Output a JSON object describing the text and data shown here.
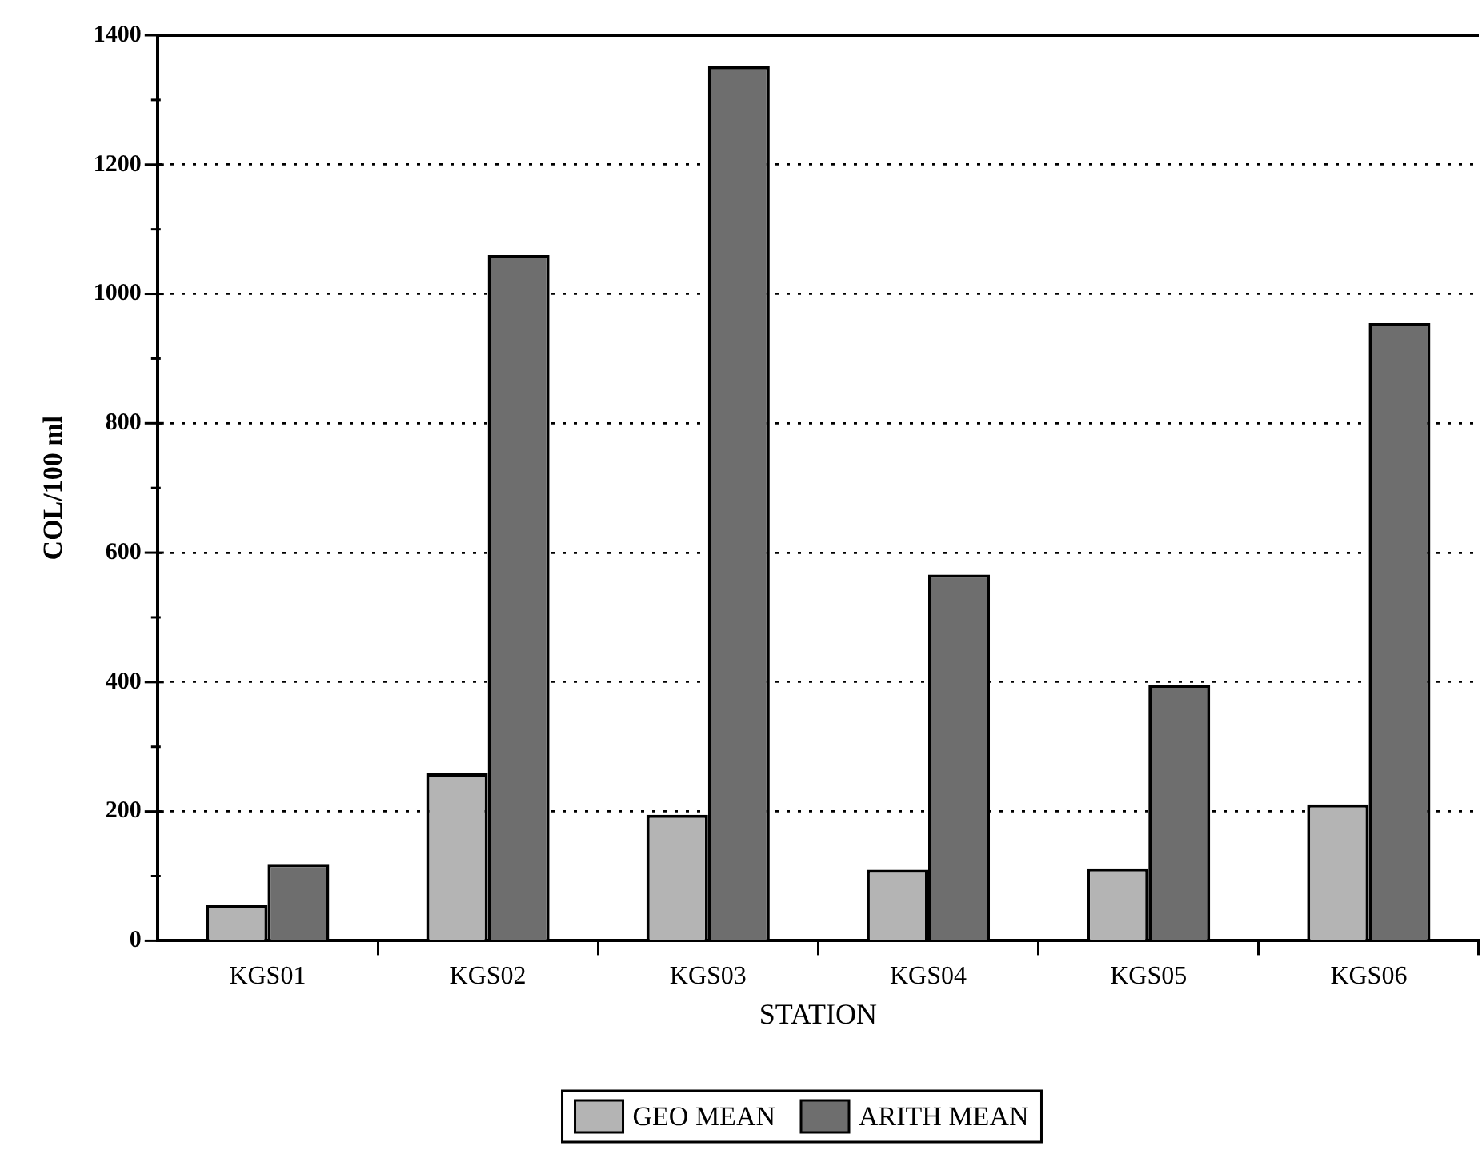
{
  "chart_data": {
    "type": "bar",
    "xlabel": "STATION",
    "ylabel": "COL/100 ml",
    "categories": [
      "KGS01",
      "KGS02",
      "KGS03",
      "KGS04",
      "KGS05",
      "KGS06"
    ],
    "series": [
      {
        "name": "GEO MEAN",
        "color": "#b4b4b4",
        "values": [
          55,
          259,
          195,
          110,
          112,
          211
        ]
      },
      {
        "name": "ARITH MEAN",
        "color": "#6e6e6e",
        "values": [
          119,
          1060,
          1352,
          566,
          396,
          955
        ]
      }
    ],
    "ylim": [
      0,
      1400
    ],
    "yticks": [
      0,
      {
        "value": 100,
        "label": null
      },
      200,
      {
        "value": 300,
        "label": null
      },
      400,
      {
        "value": 500,
        "label": null
      },
      600,
      {
        "value": 700,
        "label": null
      },
      800,
      {
        "value": 900,
        "label": null
      },
      1000,
      {
        "value": 1100,
        "label": null
      },
      1200,
      {
        "value": 1300,
        "label": null
      },
      1400
    ],
    "grid": "y",
    "legend": "bottom"
  }
}
